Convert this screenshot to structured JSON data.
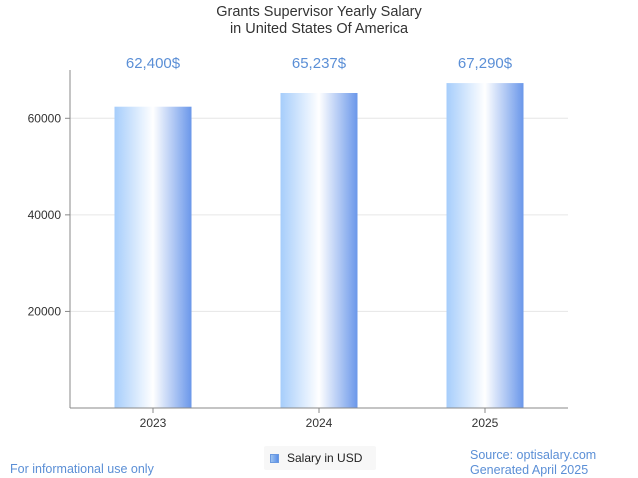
{
  "chart_data": {
    "type": "bar",
    "title": "Grants Supervisor Yearly Salary",
    "subtitle": "in United States Of America",
    "categories": [
      "2023",
      "2024",
      "2025"
    ],
    "series": [
      {
        "name": "Salary in USD",
        "values": [
          62400,
          65237,
          67290
        ],
        "labels": [
          "62,400$",
          "65,237$",
          "67,290$"
        ]
      }
    ],
    "yticks": [
      20000,
      40000,
      60000
    ],
    "ylim": [
      0,
      70000
    ],
    "grid": true,
    "legend_position": "bottom-center"
  },
  "footer": {
    "disclaimer": "For informational use only",
    "source": "Source: optisalary.com",
    "generated": "Generated April 2025"
  },
  "colors": {
    "bar_light": "#a6cdfb",
    "bar_mid": "#ffffff",
    "bar_dark": "#6a97ea",
    "value_label": "#5b8fd6",
    "axis": "#888888",
    "grid": "#e6e6e6"
  }
}
